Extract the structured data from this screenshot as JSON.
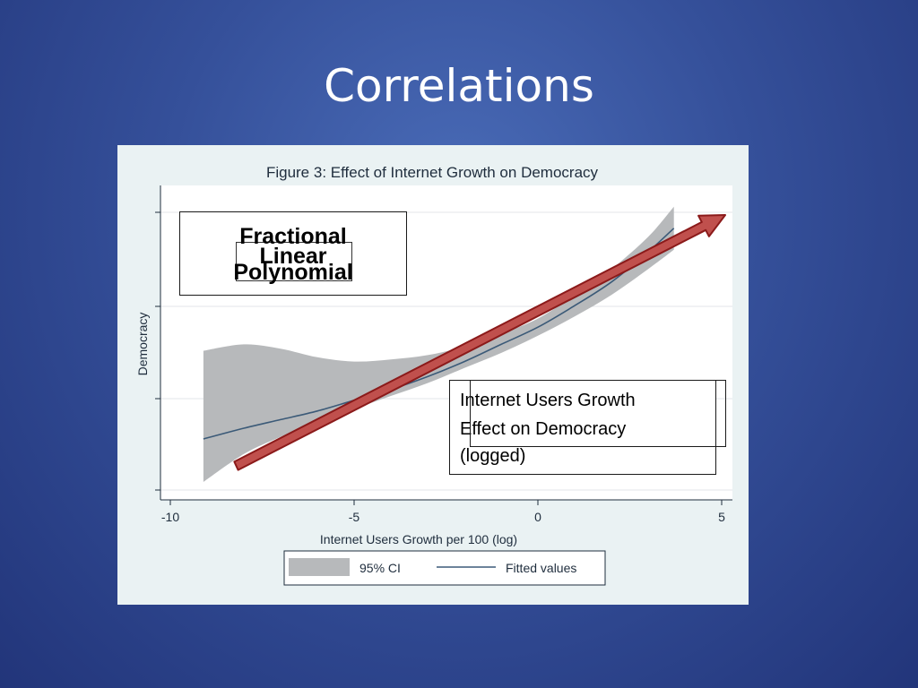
{
  "slide": {
    "title": "Correlations"
  },
  "overlays": {
    "method_box": {
      "line1": "Fractional",
      "line2": "Linear",
      "line3": "Polynomial"
    },
    "interpretation_box": {
      "line1": "Internet Users Growth",
      "line2": "Effect on Democracy",
      "line3": "(logged)"
    }
  },
  "colors": {
    "fitted_line": "#3b5a78",
    "ci_band": "#b7b9bb",
    "arrow_fill": "#c0504d",
    "arrow_stroke": "#8b1a1a",
    "plot_background": "#ffffff",
    "figure_background": "#eaf2f3"
  },
  "chart_data": {
    "type": "line",
    "title": "Figure 3: Effect of Internet Growth on Democracy",
    "xlabel": "Internet Users Growth per 100 (log)",
    "ylabel": "Democracy",
    "xlim": [
      -10,
      5
    ],
    "xticks": [
      -10,
      -5,
      0,
      5
    ],
    "xtick_labels": [
      "-10",
      "-5",
      "0",
      "5"
    ],
    "ytick_count": 4,
    "ytick_labels": [],
    "grid": true,
    "legend_position": "bottom",
    "legend": [
      "95% CI",
      "Fitted values"
    ],
    "series": [
      {
        "name": "Fitted values",
        "x": [
          -9.1,
          -8,
          -7,
          -6,
          -5,
          -4,
          -3,
          -2,
          -1,
          0,
          1,
          2,
          3,
          3.7
        ],
        "y": [
          0.3,
          0.35,
          0.39,
          0.43,
          0.48,
          0.53,
          0.59,
          0.66,
          0.74,
          0.82,
          0.92,
          1.03,
          1.17,
          1.28
        ]
      },
      {
        "name": "95% CI",
        "x": [
          -9.1,
          -8,
          -7,
          -6,
          -5,
          -4,
          -3,
          -2,
          -1,
          0,
          1,
          2,
          3,
          3.7
        ],
        "lower": [
          0.1,
          0.23,
          0.31,
          0.38,
          0.44,
          0.5,
          0.56,
          0.63,
          0.7,
          0.78,
          0.87,
          0.97,
          1.09,
          1.18
        ],
        "upper": [
          0.71,
          0.74,
          0.72,
          0.68,
          0.66,
          0.67,
          0.69,
          0.73,
          0.79,
          0.86,
          0.97,
          1.09,
          1.24,
          1.38
        ]
      }
    ]
  }
}
